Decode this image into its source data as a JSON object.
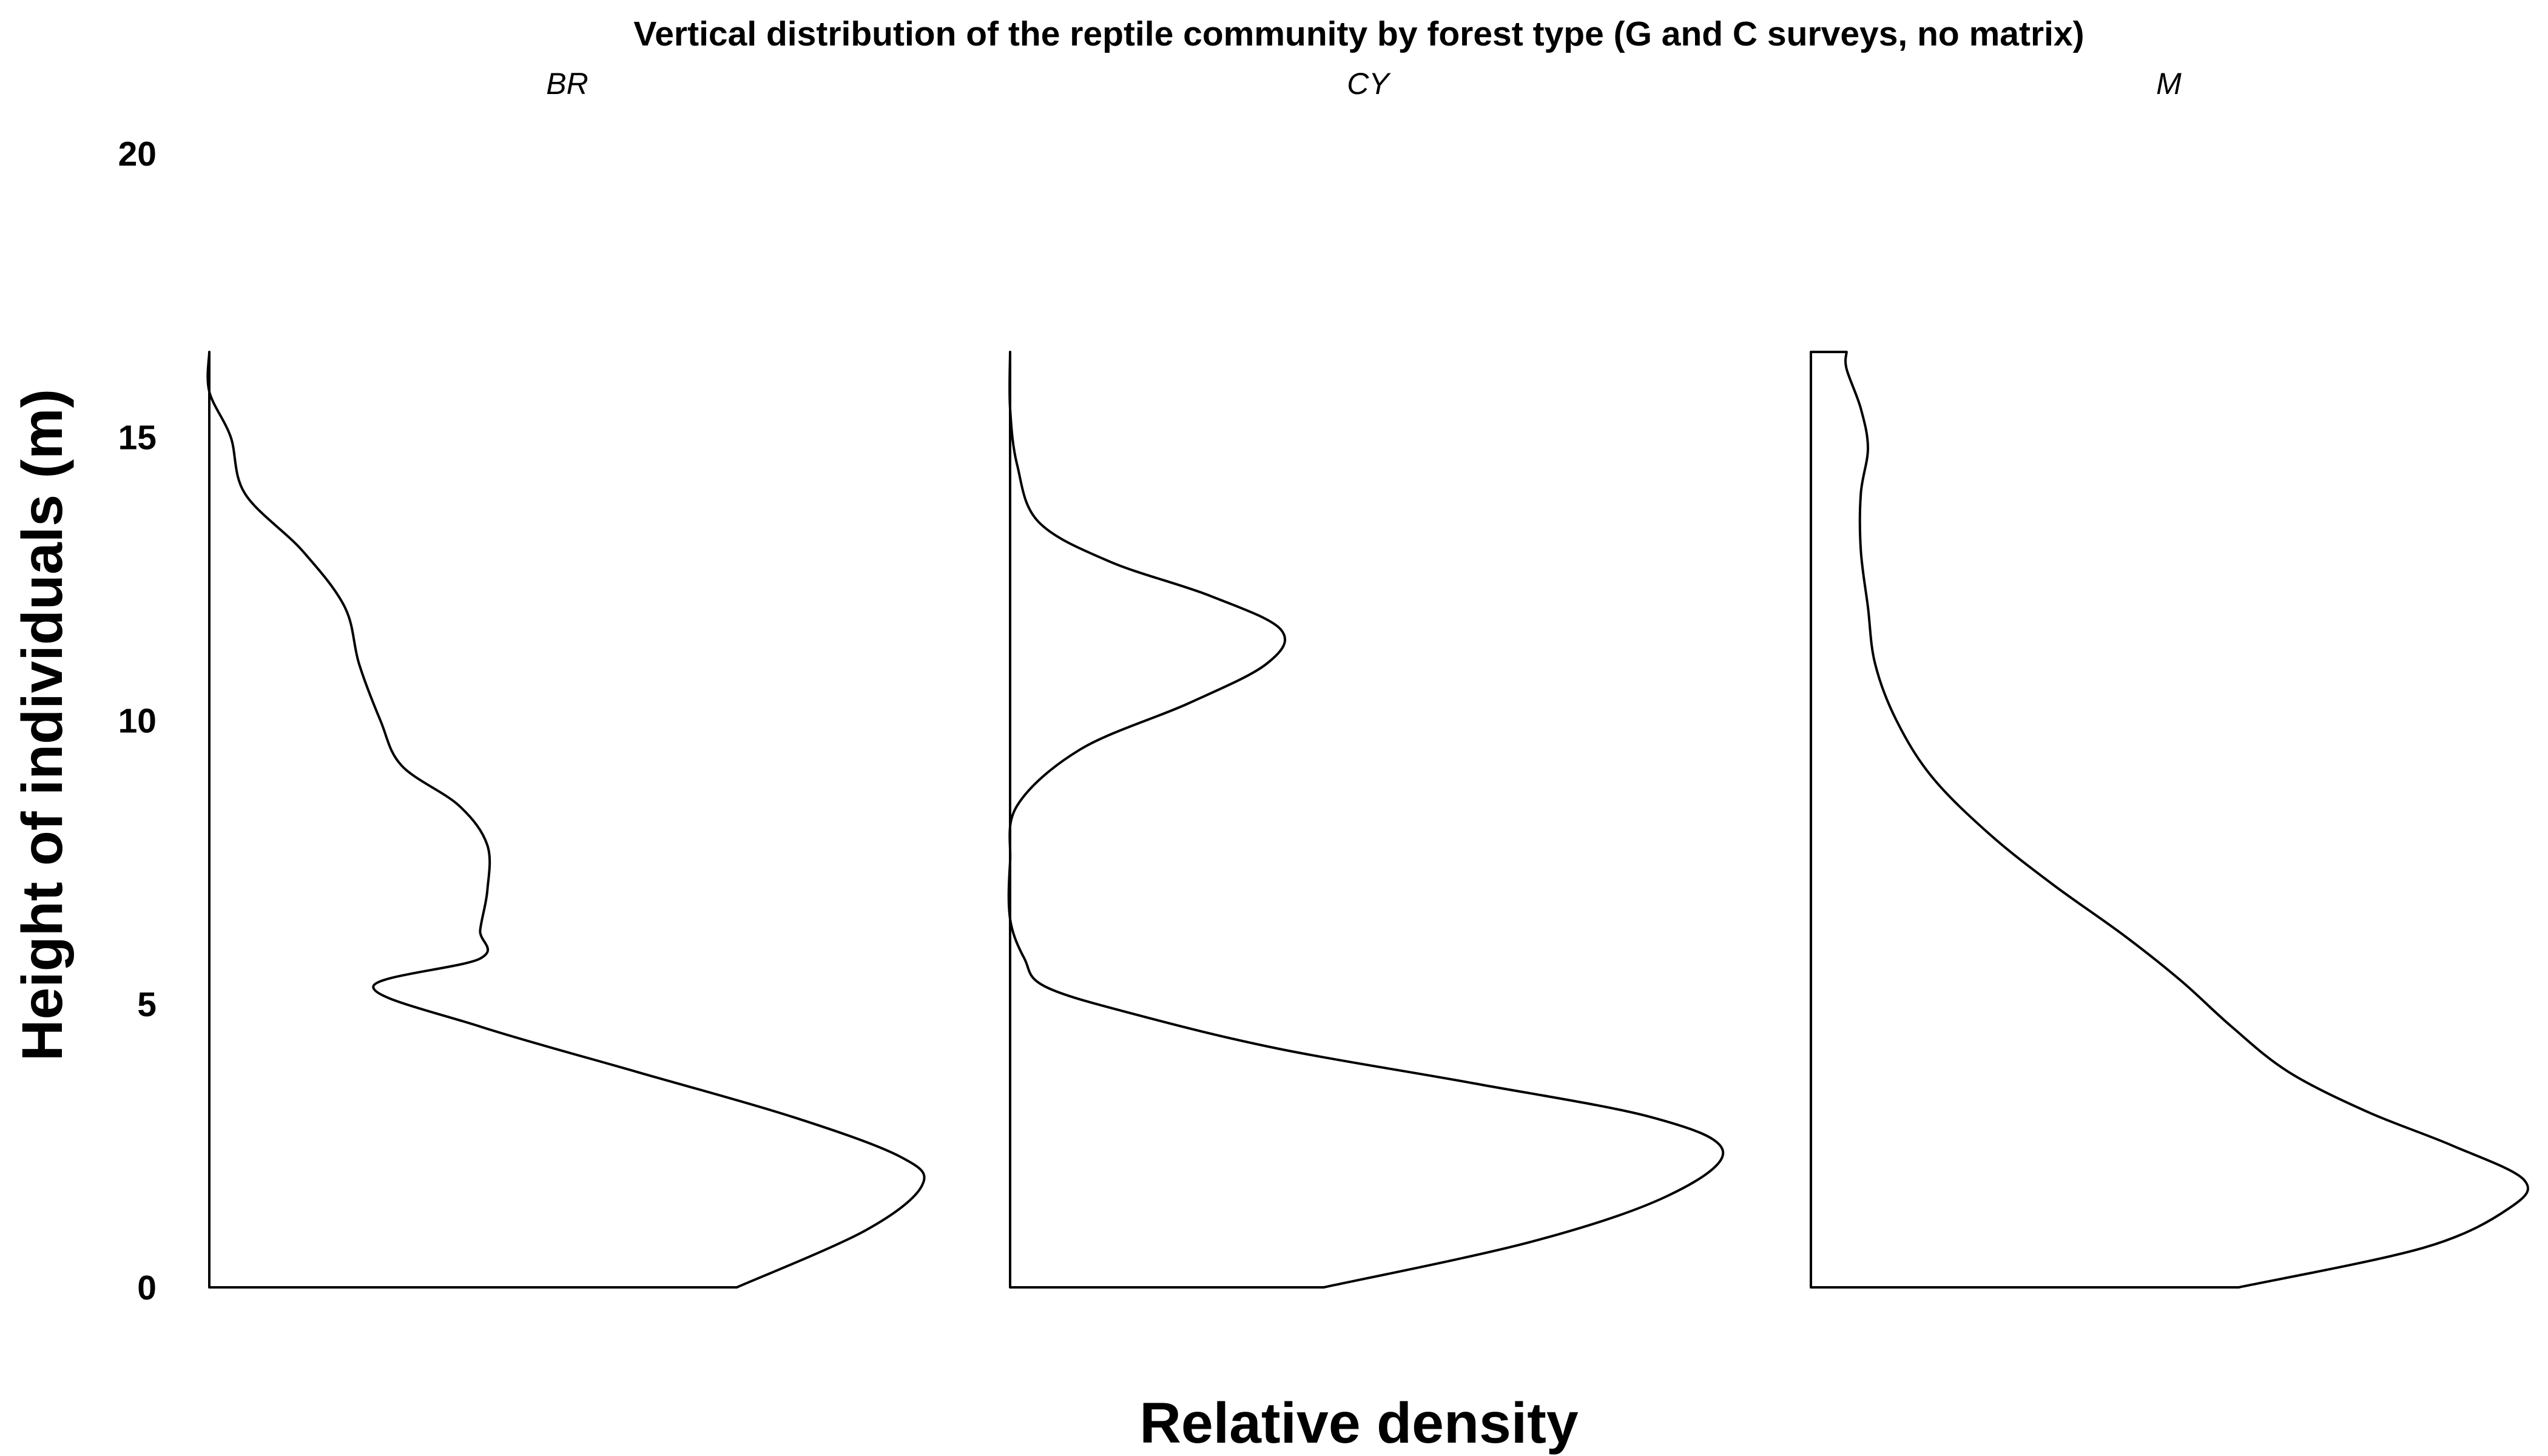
{
  "chart_data": {
    "type": "area",
    "title": "Vertical distribution of the reptile community by forest type (G and C surveys, no matrix)",
    "xlabel": "Relative density",
    "ylabel": "Height of individuals (m)",
    "ylim": [
      0,
      20
    ],
    "yticks": [
      "0",
      "5",
      "10",
      "15",
      "20"
    ],
    "grid": false,
    "legend": "none",
    "facets": [
      {
        "name": "BR",
        "height": [
          0,
          1.0,
          1.8,
          2.3,
          3.0,
          3.8,
          4.6,
          5.3,
          5.8,
          6.3,
          7.0,
          7.8,
          8.5,
          9.2,
          10.0,
          11.0,
          12.0,
          13.0,
          14.0,
          15.0,
          15.8,
          16.5
        ],
        "density": [
          0.74,
          0.92,
          1.0,
          0.97,
          0.82,
          0.6,
          0.38,
          0.23,
          0.38,
          0.38,
          0.39,
          0.39,
          0.35,
          0.27,
          0.24,
          0.21,
          0.19,
          0.13,
          0.05,
          0.03,
          0.0,
          0.0
        ]
      },
      {
        "name": "CY",
        "height": [
          0,
          0.8,
          1.6,
          2.4,
          3.0,
          3.6,
          4.2,
          4.8,
          5.3,
          5.8,
          6.5,
          7.5,
          8.5,
          9.5,
          10.3,
          11.0,
          11.6,
          12.2,
          12.8,
          13.5,
          14.5,
          15.5,
          16.5
        ],
        "density": [
          0.44,
          0.73,
          0.92,
          1.0,
          0.9,
          0.65,
          0.38,
          0.18,
          0.05,
          0.02,
          0.0,
          0.0,
          0.01,
          0.1,
          0.25,
          0.36,
          0.38,
          0.28,
          0.14,
          0.04,
          0.01,
          0.0,
          0.0
        ]
      },
      {
        "name": "M",
        "height": [
          0,
          0.7,
          1.4,
          1.9,
          2.5,
          3.1,
          3.8,
          4.6,
          5.4,
          6.2,
          7.1,
          8.0,
          9.0,
          10.0,
          11.0,
          12.0,
          13.0,
          14.0,
          14.8,
          15.5,
          16.2,
          16.5
        ],
        "density": [
          0.6,
          0.86,
          0.98,
          1.0,
          0.9,
          0.78,
          0.67,
          0.59,
          0.52,
          0.44,
          0.34,
          0.25,
          0.17,
          0.12,
          0.09,
          0.08,
          0.07,
          0.07,
          0.08,
          0.07,
          0.05,
          0.05
        ]
      }
    ]
  }
}
